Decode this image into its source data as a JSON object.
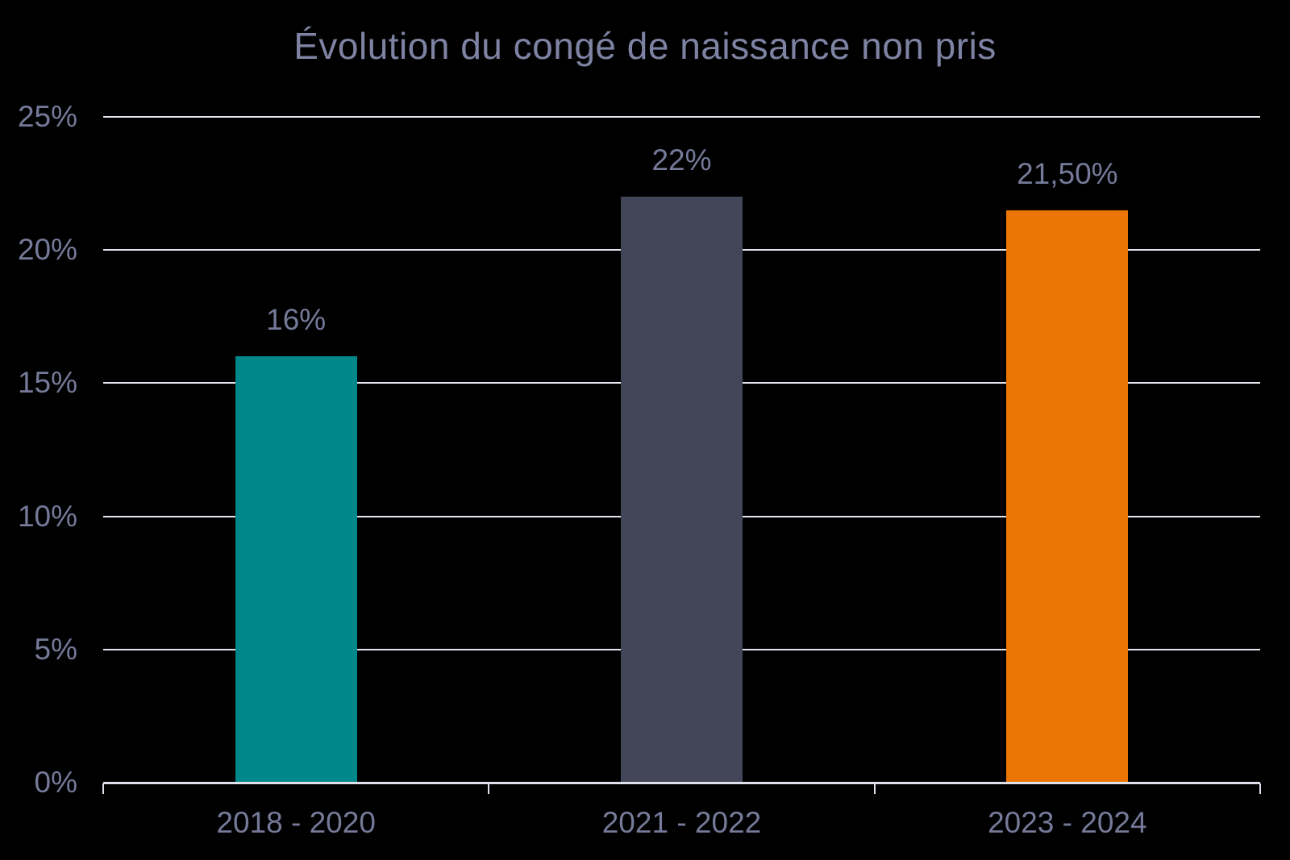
{
  "title": "Évolution du congé de naissance non pris",
  "colors": {
    "background": "#000000",
    "title_text": "#7E83A3",
    "label_text": "#757A99",
    "gridline": "#E6E6F0",
    "axis": "#E0E0EB",
    "bar_colors": [
      "#008789",
      "#434659",
      "#ED7505"
    ]
  },
  "chart_data": {
    "type": "bar",
    "title": "Évolution du congé de naissance non pris",
    "categories": [
      "2018 - 2020",
      "2021 - 2022",
      "2023 - 2024"
    ],
    "values": [
      16,
      22,
      21.5
    ],
    "bar_labels": [
      "16%",
      "22%",
      "21,50%"
    ],
    "xlabel": "",
    "ylabel": "",
    "ylim": [
      0,
      25
    ],
    "ytick_step": 5,
    "ytick_labels": [
      "0%",
      "5%",
      "10%",
      "15%",
      "20%",
      "25%"
    ],
    "grid": true,
    "legend": false
  }
}
